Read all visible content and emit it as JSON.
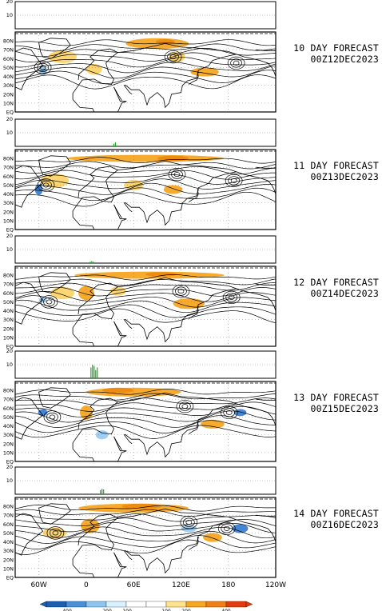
{
  "chart_data": {
    "type": "multi-panel forecast map",
    "panels": [
      {
        "forecast_title": "10 DAY FORECAST",
        "valid_time": "00Z12DEC2023",
        "bar_values": [],
        "anomaly_blobs": [
          {
            "lon": 90,
            "lat": 77,
            "rlon": 40,
            "rlat": 6,
            "value": 200
          },
          {
            "lon": 100,
            "lat": 79,
            "rlon": 12,
            "rlat": 3,
            "value": 400
          },
          {
            "lon": -30,
            "lat": 62,
            "rlon": 18,
            "rlat": 7,
            "value": 150
          },
          {
            "lon": -55,
            "lat": 47,
            "rlon": 5,
            "rlat": 6,
            "value": -150
          },
          {
            "lon": 10,
            "lat": 48,
            "rlon": 10,
            "rlat": 6,
            "value": 150
          },
          {
            "lon": 150,
            "lat": 45,
            "rlon": 18,
            "rlat": 5,
            "value": 200
          },
          {
            "lon": 115,
            "lat": 62,
            "rlon": 10,
            "rlat": 6,
            "value": 150
          }
        ]
      },
      {
        "forecast_title": "11 DAY FORECAST",
        "valid_time": "00Z13DEC2023",
        "bar_values": [
          {
            "lon": 35,
            "value": 2
          },
          {
            "lon": 37,
            "value": 3
          }
        ],
        "anomaly_blobs": [
          {
            "lon": 75,
            "lat": 80,
            "rlon": 100,
            "rlat": 4,
            "value": 200
          },
          {
            "lon": 110,
            "lat": 80,
            "rlon": 20,
            "rlat": 3,
            "value": 400
          },
          {
            "lon": -60,
            "lat": 45,
            "rlon": 5,
            "rlat": 6,
            "value": -200
          },
          {
            "lon": -40,
            "lat": 55,
            "rlon": 18,
            "rlat": 8,
            "value": 150
          },
          {
            "lon": 60,
            "lat": 50,
            "rlon": 12,
            "rlat": 6,
            "value": 150
          },
          {
            "lon": 110,
            "lat": 45,
            "rlon": 12,
            "rlat": 5,
            "value": 200
          }
        ]
      },
      {
        "forecast_title": "12 DAY FORECAST",
        "valid_time": "00Z14DEC2023",
        "bar_values": [
          {
            "lon": 5,
            "value": 1
          },
          {
            "lon": 7,
            "value": 1.5
          },
          {
            "lon": 9,
            "value": 1
          }
        ],
        "anomaly_blobs": [
          {
            "lon": 80,
            "lat": 80,
            "rlon": 95,
            "rlat": 4,
            "value": 200
          },
          {
            "lon": 95,
            "lat": 81,
            "rlon": 20,
            "rlat": 2.5,
            "value": 400
          },
          {
            "lon": -30,
            "lat": 60,
            "rlon": 15,
            "rlat": 7,
            "value": 150
          },
          {
            "lon": 0,
            "lat": 60,
            "rlon": 10,
            "rlat": 8,
            "value": 200
          },
          {
            "lon": -55,
            "lat": 52,
            "rlon": 5,
            "rlat": 3,
            "value": -150
          },
          {
            "lon": 130,
            "lat": 48,
            "rlon": 20,
            "rlat": 6,
            "value": 200
          },
          {
            "lon": 40,
            "lat": 62,
            "rlon": 10,
            "rlat": 5,
            "value": 150
          }
        ]
      },
      {
        "forecast_title": "13 DAY FORECAST",
        "valid_time": "00Z15DEC2023",
        "bar_values": [
          {
            "lon": 6,
            "value": 8
          },
          {
            "lon": 8,
            "value": 10
          },
          {
            "lon": 10,
            "value": 9
          },
          {
            "lon": 12,
            "value": 6
          },
          {
            "lon": 14,
            "value": 8
          }
        ],
        "anomaly_blobs": [
          {
            "lon": 60,
            "lat": 78,
            "rlon": 60,
            "rlat": 5,
            "value": 200
          },
          {
            "lon": 40,
            "lat": 80,
            "rlon": 20,
            "rlat": 3,
            "value": 400
          },
          {
            "lon": 0,
            "lat": 55,
            "rlon": 8,
            "rlat": 8,
            "value": 200
          },
          {
            "lon": -55,
            "lat": 55,
            "rlon": 6,
            "rlat": 4,
            "value": -200
          },
          {
            "lon": 160,
            "lat": 42,
            "rlon": 15,
            "rlat": 5,
            "value": 200
          },
          {
            "lon": 195,
            "lat": 55,
            "rlon": 8,
            "rlat": 4,
            "value": -200
          },
          {
            "lon": 20,
            "lat": 30,
            "rlon": 8,
            "rlat": 5,
            "value": -150
          }
        ]
      },
      {
        "forecast_title": "14 DAY FORECAST",
        "valid_time": "00Z16DEC2023",
        "bar_values": [
          {
            "lon": 18,
            "value": 3
          },
          {
            "lon": 20,
            "value": 4
          },
          {
            "lon": 22,
            "value": 3.5
          }
        ],
        "anomaly_blobs": [
          {
            "lon": 60,
            "lat": 78,
            "rlon": 70,
            "rlat": 5,
            "value": 200
          },
          {
            "lon": 70,
            "lat": 80,
            "rlon": 25,
            "rlat": 3,
            "value": 400
          },
          {
            "lon": 5,
            "lat": 58,
            "rlon": 12,
            "rlat": 8,
            "value": 200
          },
          {
            "lon": -40,
            "lat": 50,
            "rlon": 15,
            "rlat": 6,
            "value": 150
          },
          {
            "lon": 130,
            "lat": 55,
            "rlon": 10,
            "rlat": 4,
            "value": -150
          },
          {
            "lon": 195,
            "lat": 55,
            "rlon": 10,
            "rlat": 5,
            "value": -200
          },
          {
            "lon": 160,
            "lat": 45,
            "rlon": 12,
            "rlat": 5,
            "value": 200
          }
        ]
      }
    ],
    "bar_ylim": [
      0,
      20
    ],
    "bar_yticks": [
      "10",
      "20"
    ],
    "map_lon_range": [
      -90,
      240
    ],
    "map_lat_range": [
      0,
      90
    ],
    "lat_ticks": [
      "80N",
      "70N",
      "60N",
      "50N",
      "40N",
      "30N",
      "20N",
      "10N",
      "EQ"
    ],
    "lon_ticks": [
      {
        "lon": -60,
        "label": "60W"
      },
      {
        "lon": 0,
        "label": "0"
      },
      {
        "lon": 60,
        "label": "60E"
      },
      {
        "lon": 120,
        "label": "120E"
      },
      {
        "lon": 180,
        "label": "180"
      },
      {
        "lon": 240,
        "label": "120W"
      }
    ],
    "colorbar": {
      "labels": [
        "-400",
        "-200",
        "-100",
        "100",
        "200",
        "400"
      ],
      "colors": [
        "#1a5fb4",
        "#4a90d9",
        "#8ec5f0",
        "#d8f0ff",
        "#ffffff",
        "#ffffff",
        "#ffe28a",
        "#f5a623",
        "#f07f1a",
        "#e23b10"
      ]
    },
    "fill_colors": {
      "neg_strong": "#3d7fd0",
      "neg_weak": "#9ccbf2",
      "pos_weak": "#fcd46b",
      "pos_mid": "#f5a623",
      "pos_strong": "#ec8a12",
      "bar_green": "#2ca02c"
    }
  }
}
